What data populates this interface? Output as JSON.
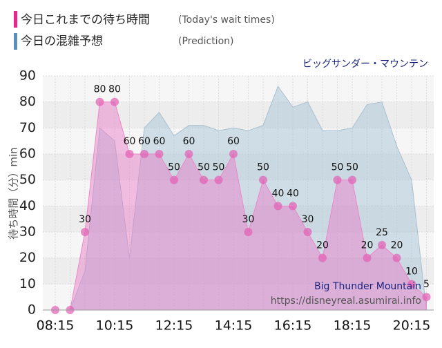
{
  "chart_data": {
    "type": "area",
    "subtitle": "ビッグサンダー・マウンテン",
    "ylabel": "待ち時間（分）min",
    "watermark": [
      "Big Thunder Mountain",
      "https://disneyreal.asumirai.info"
    ],
    "categories": [
      "08:15",
      null,
      null,
      null,
      "10:15",
      null,
      null,
      null,
      "12:15",
      null,
      null,
      null,
      "14:15",
      null,
      null,
      null,
      "16:15",
      null,
      null,
      null,
      "18:15",
      null,
      null,
      null,
      "20:15",
      null
    ],
    "series": [
      {
        "name": "今日これまでの待ち時間",
        "note": "(Today's wait times)",
        "color": "#e35fb4",
        "values": [
          0,
          0,
          30,
          80,
          80,
          60,
          60,
          60,
          50,
          60,
          50,
          50,
          60,
          30,
          50,
          40,
          40,
          30,
          20,
          50,
          50,
          20,
          25,
          20,
          10,
          5
        ]
      },
      {
        "name": "今日の混雑予想",
        "note": "(Prediction)",
        "color": "#5b8fba",
        "values": [
          0,
          0,
          15,
          70,
          65,
          20,
          70,
          76,
          67,
          71,
          71,
          69,
          70,
          69,
          71,
          86,
          78,
          80,
          69,
          69,
          70,
          79,
          80,
          63,
          50,
          0
        ]
      }
    ],
    "ylim": [
      0,
      90
    ],
    "yticks": [
      0,
      10,
      20,
      30,
      40,
      50,
      60,
      70,
      80,
      90
    ],
    "grid": true
  }
}
